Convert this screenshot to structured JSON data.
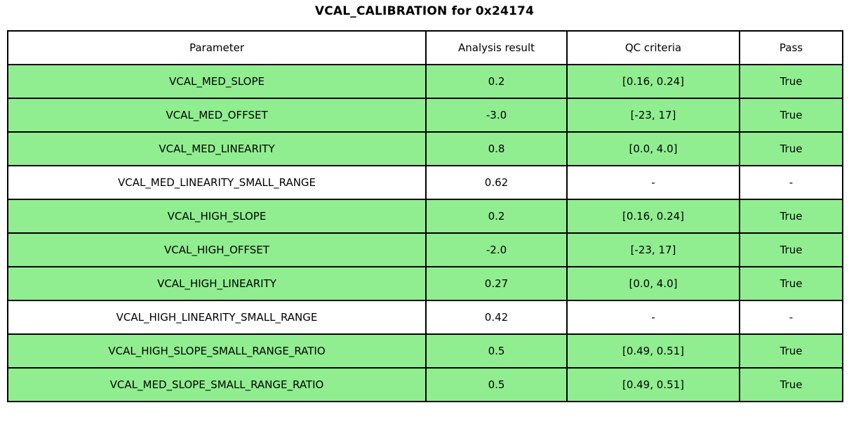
{
  "title": "VCAL_CALIBRATION for 0x24174",
  "colors": {
    "pass_green": "#90EE90",
    "neutral_white": "#FFFFFF",
    "border_black": "#000000"
  },
  "table": {
    "headers": [
      "Parameter",
      "Analysis result",
      "QC criteria",
      "Pass"
    ],
    "rows": [
      {
        "parameter": "VCAL_MED_SLOPE",
        "result": "0.2",
        "criteria": "[0.16, 0.24]",
        "pass": "True",
        "highlight": true
      },
      {
        "parameter": "VCAL_MED_OFFSET",
        "result": "-3.0",
        "criteria": "[-23, 17]",
        "pass": "True",
        "highlight": true
      },
      {
        "parameter": "VCAL_MED_LINEARITY",
        "result": "0.8",
        "criteria": "[0.0, 4.0]",
        "pass": "True",
        "highlight": true
      },
      {
        "parameter": "VCAL_MED_LINEARITY_SMALL_RANGE",
        "result": "0.62",
        "criteria": "-",
        "pass": "-",
        "highlight": false
      },
      {
        "parameter": "VCAL_HIGH_SLOPE",
        "result": "0.2",
        "criteria": "[0.16, 0.24]",
        "pass": "True",
        "highlight": true
      },
      {
        "parameter": "VCAL_HIGH_OFFSET",
        "result": "-2.0",
        "criteria": "[-23, 17]",
        "pass": "True",
        "highlight": true
      },
      {
        "parameter": "VCAL_HIGH_LINEARITY",
        "result": "0.27",
        "criteria": "[0.0, 4.0]",
        "pass": "True",
        "highlight": true
      },
      {
        "parameter": "VCAL_HIGH_LINEARITY_SMALL_RANGE",
        "result": "0.42",
        "criteria": "-",
        "pass": "-",
        "highlight": false
      },
      {
        "parameter": "VCAL_HIGH_SLOPE_SMALL_RANGE_RATIO",
        "result": "0.5",
        "criteria": "[0.49, 0.51]",
        "pass": "True",
        "highlight": true
      },
      {
        "parameter": "VCAL_MED_SLOPE_SMALL_RANGE_RATIO",
        "result": "0.5",
        "criteria": "[0.49, 0.51]",
        "pass": "True",
        "highlight": true
      }
    ]
  },
  "chart_data": {
    "type": "table",
    "title": "VCAL_CALIBRATION for 0x24174",
    "columns": [
      "Parameter",
      "Analysis result",
      "QC criteria",
      "Pass"
    ],
    "rows": [
      [
        "VCAL_MED_SLOPE",
        "0.2",
        "[0.16, 0.24]",
        "True"
      ],
      [
        "VCAL_MED_OFFSET",
        "-3.0",
        "[-23, 17]",
        "True"
      ],
      [
        "VCAL_MED_LINEARITY",
        "0.8",
        "[0.0, 4.0]",
        "True"
      ],
      [
        "VCAL_MED_LINEARITY_SMALL_RANGE",
        "0.62",
        "-",
        "-"
      ],
      [
        "VCAL_HIGH_SLOPE",
        "0.2",
        "[0.16, 0.24]",
        "True"
      ],
      [
        "VCAL_HIGH_OFFSET",
        "-2.0",
        "[-23, 17]",
        "True"
      ],
      [
        "VCAL_HIGH_LINEARITY",
        "0.27",
        "[0.0, 4.0]",
        "True"
      ],
      [
        "VCAL_HIGH_LINEARITY_SMALL_RANGE",
        "0.42",
        "-",
        "-"
      ],
      [
        "VCAL_HIGH_SLOPE_SMALL_RANGE_RATIO",
        "0.5",
        "[0.49, 0.51]",
        "True"
      ],
      [
        "VCAL_MED_SLOPE_SMALL_RANGE_RATIO",
        "0.5",
        "[0.49, 0.51]",
        "True"
      ]
    ],
    "row_highlighted_green": [
      true,
      true,
      true,
      false,
      true,
      true,
      true,
      false,
      true,
      true
    ],
    "legend_position": "none",
    "grid": true
  }
}
